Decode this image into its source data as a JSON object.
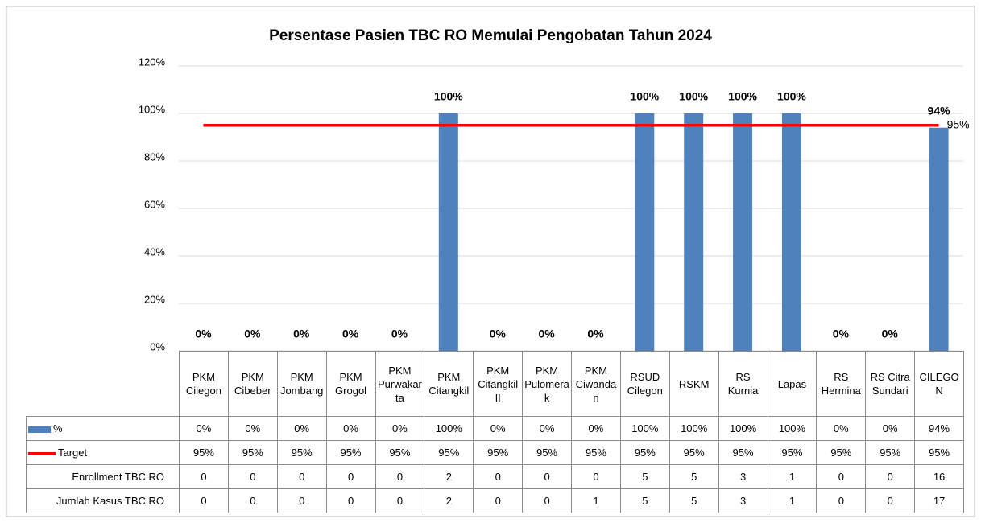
{
  "chart_data": {
    "type": "bar",
    "title": "Persentase Pasien TBC RO Memulai Pengobatan Tahun 2024",
    "categories": [
      "PKM Cilegon",
      "PKM Cibeber",
      "PKM Jombang",
      "PKM Grogol",
      "PKM Purwakarta",
      "PKM Citangkil",
      "PKM Citangkil II",
      "PKM Pulomerak",
      "PKM Ciwandan",
      "RSUD Cilegon",
      "RSKM",
      "RS Kurnia",
      "Lapas",
      "RS Hermina",
      "RS Citra Sundari",
      "CILEGON"
    ],
    "series": [
      {
        "name": "%",
        "type": "bar",
        "color": "#4f81bd",
        "values": [
          0,
          0,
          0,
          0,
          0,
          100,
          0,
          0,
          0,
          100,
          100,
          100,
          100,
          0,
          0,
          94
        ],
        "value_labels": [
          "0%",
          "0%",
          "0%",
          "0%",
          "0%",
          "100%",
          "0%",
          "0%",
          "0%",
          "100%",
          "100%",
          "100%",
          "100%",
          "0%",
          "0%",
          "94%"
        ]
      },
      {
        "name": "Target",
        "type": "line",
        "color": "#ff0000",
        "values": [
          95,
          95,
          95,
          95,
          95,
          95,
          95,
          95,
          95,
          95,
          95,
          95,
          95,
          95,
          95,
          95
        ],
        "value_labels": [
          "95%",
          "95%",
          "95%",
          "95%",
          "95%",
          "95%",
          "95%",
          "95%",
          "95%",
          "95%",
          "95%",
          "95%",
          "95%",
          "95%",
          "95%",
          "95%"
        ]
      }
    ],
    "table_rows": [
      {
        "name": "Enrollment TBC RO",
        "values": [
          0,
          0,
          0,
          0,
          0,
          2,
          0,
          0,
          0,
          5,
          5,
          3,
          1,
          0,
          0,
          16
        ]
      },
      {
        "name": "Jumlah Kasus TBC RO",
        "values": [
          0,
          0,
          0,
          0,
          0,
          2,
          0,
          0,
          1,
          5,
          5,
          3,
          1,
          0,
          0,
          17
        ]
      }
    ],
    "ylim": [
      0,
      120
    ],
    "yticks": [
      {
        "value": 0,
        "label": "0%"
      },
      {
        "value": 20,
        "label": "20%"
      },
      {
        "value": 40,
        "label": "40%"
      },
      {
        "value": 60,
        "label": "60%"
      },
      {
        "value": 80,
        "label": "80%"
      },
      {
        "value": 100,
        "label": "100%"
      },
      {
        "value": 120,
        "label": "120%"
      }
    ],
    "grid": true
  }
}
